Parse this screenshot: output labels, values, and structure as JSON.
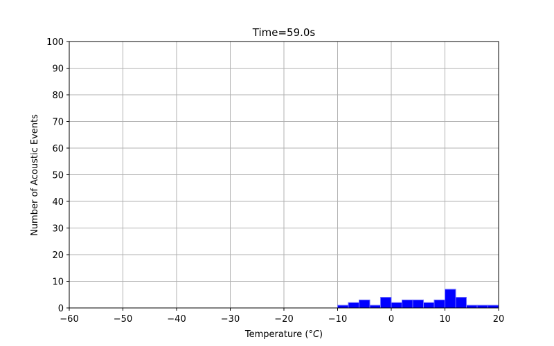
{
  "chart_data": {
    "type": "bar",
    "title": "Time=59.0s",
    "xlabel_main": "Temperature (",
    "xlabel_unit": "°C",
    "xlabel_close": ")",
    "ylabel": "Number of Acoustic Events",
    "xlim": [
      -60,
      20
    ],
    "ylim": [
      0,
      100
    ],
    "xticks": [
      "−60",
      "−50",
      "−40",
      "−30",
      "−20",
      "−10",
      "0",
      "10",
      "20"
    ],
    "yticks": [
      "0",
      "10",
      "20",
      "30",
      "40",
      "50",
      "60",
      "70",
      "80",
      "90",
      "100"
    ],
    "bin_width": 2,
    "bins": [
      {
        "x0": -10,
        "count": 1
      },
      {
        "x0": -8,
        "count": 2
      },
      {
        "x0": -6,
        "count": 3
      },
      {
        "x0": -4,
        "count": 1
      },
      {
        "x0": -2,
        "count": 4
      },
      {
        "x0": 0,
        "count": 2
      },
      {
        "x0": 2,
        "count": 3
      },
      {
        "x0": 4,
        "count": 3
      },
      {
        "x0": 6,
        "count": 2
      },
      {
        "x0": 8,
        "count": 3
      },
      {
        "x0": 10,
        "count": 7
      },
      {
        "x0": 12,
        "count": 4
      },
      {
        "x0": 14,
        "count": 1
      },
      {
        "x0": 16,
        "count": 1
      },
      {
        "x0": 18,
        "count": 1
      }
    ],
    "grid": true,
    "bar_color": "#0000ff",
    "bar_edge_color": "#6f6fff"
  }
}
